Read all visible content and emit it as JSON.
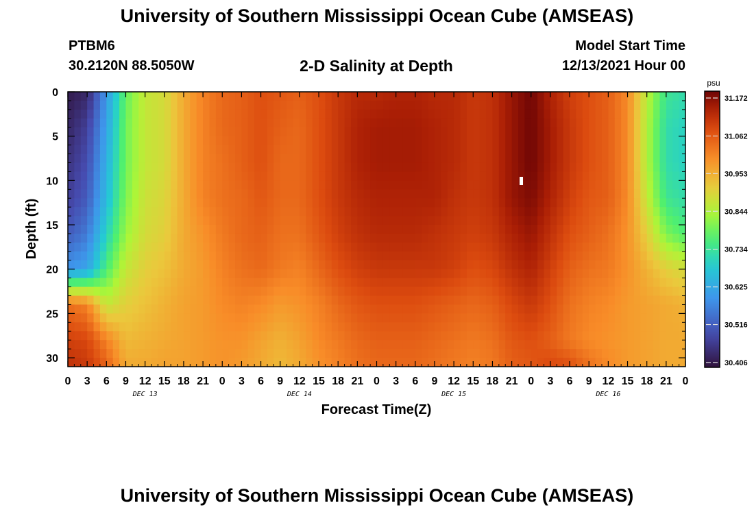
{
  "page": {
    "title": "University of Southern Mississippi Ocean Cube (AMSEAS)",
    "title_repeat": "University of Southern Mississippi Ocean Cube (AMSEAS)",
    "station_id": "PTBM6",
    "station_coords": "30.2120N  88.5050W",
    "subtitle": "2-D Salinity at Depth",
    "model_start_label": "Model Start Time",
    "model_start_value": "12/13/2021 Hour 00"
  },
  "chart_data": {
    "type": "heatmap",
    "title": "2-D Salinity at Depth",
    "xlabel": "Forecast Time(Z)",
    "ylabel": "Depth (ft)",
    "x_unit": "hours since model start",
    "xlim": [
      0,
      96
    ],
    "ylim": [
      31,
      0
    ],
    "x_ticks": [
      0,
      3,
      6,
      9,
      12,
      15,
      18,
      21,
      24,
      27,
      30,
      33,
      36,
      39,
      42,
      45,
      48,
      51,
      54,
      57,
      60,
      63,
      66,
      69,
      72,
      75,
      78,
      81,
      84,
      87,
      90,
      93,
      96
    ],
    "x_tick_labels": [
      "0",
      "3",
      "6",
      "9",
      "12",
      "15",
      "18",
      "21",
      "0",
      "3",
      "6",
      "9",
      "12",
      "15",
      "18",
      "21",
      "0",
      "3",
      "6",
      "9",
      "12",
      "15",
      "18",
      "21",
      "0",
      "3",
      "6",
      "9",
      "12",
      "15",
      "18",
      "21",
      "0"
    ],
    "day_labels": [
      {
        "x": 12,
        "label": "DEC 13"
      },
      {
        "x": 36,
        "label": "DEC 14"
      },
      {
        "x": 60,
        "label": "DEC 15"
      },
      {
        "x": 84,
        "label": "DEC 16"
      }
    ],
    "y_ticks": [
      0,
      5,
      10,
      15,
      20,
      25,
      30
    ],
    "y_tick_labels": [
      "0",
      "5",
      "10",
      "15",
      "20",
      "25",
      "30"
    ],
    "colorbar": {
      "unit": "psu",
      "min": 30.406,
      "max": 31.172,
      "ticks": [
        31.172,
        31.062,
        30.953,
        30.844,
        30.734,
        30.625,
        30.516,
        30.406
      ],
      "tick_labels": [
        "31.172",
        "31.062",
        "30.953",
        "30.844",
        "30.734",
        "30.625",
        "30.516",
        "30.406"
      ]
    },
    "grid": false,
    "depths": [
      0,
      4,
      8,
      12,
      16,
      20,
      24,
      28,
      31
    ],
    "times": [
      0,
      3,
      6,
      9,
      12,
      15,
      18,
      21,
      24,
      27,
      30,
      33,
      36,
      39,
      42,
      45,
      48,
      51,
      54,
      57,
      60,
      63,
      66,
      69,
      72,
      75,
      78,
      81,
      84,
      87,
      90,
      93,
      96
    ],
    "salinity": [
      [
        30.42,
        30.44,
        30.6,
        30.78,
        30.86,
        30.88,
        30.95,
        31.0,
        31.03,
        31.04,
        31.06,
        31.05,
        31.04,
        31.06,
        31.09,
        31.11,
        31.11,
        31.12,
        31.12,
        31.11,
        31.11,
        31.09,
        31.1,
        31.14,
        31.17,
        31.12,
        31.08,
        31.06,
        31.04,
        30.99,
        30.85,
        30.74,
        30.72
      ],
      [
        30.44,
        30.48,
        30.62,
        30.79,
        30.86,
        30.88,
        30.95,
        31.0,
        31.03,
        31.04,
        31.06,
        31.04,
        31.03,
        31.06,
        31.09,
        31.12,
        31.13,
        31.13,
        31.13,
        31.12,
        31.11,
        31.09,
        31.1,
        31.14,
        31.17,
        31.13,
        31.09,
        31.06,
        31.04,
        30.99,
        30.84,
        30.72,
        30.7
      ],
      [
        30.46,
        30.5,
        30.64,
        30.79,
        30.86,
        30.88,
        30.95,
        31.0,
        31.02,
        31.04,
        31.06,
        31.03,
        31.03,
        31.06,
        31.09,
        31.12,
        31.13,
        31.13,
        31.13,
        31.12,
        31.11,
        31.09,
        31.1,
        31.14,
        31.17,
        31.13,
        31.09,
        31.06,
        31.04,
        30.99,
        30.84,
        30.72,
        30.7
      ],
      [
        30.48,
        30.52,
        30.66,
        30.8,
        30.87,
        30.89,
        30.95,
        31.0,
        31.02,
        31.03,
        31.05,
        31.03,
        31.03,
        31.06,
        31.09,
        31.11,
        31.12,
        31.12,
        31.12,
        31.12,
        31.1,
        31.09,
        31.1,
        31.14,
        31.16,
        31.12,
        31.08,
        31.05,
        31.04,
        30.99,
        30.86,
        30.74,
        30.72
      ],
      [
        30.52,
        30.56,
        30.7,
        30.82,
        30.88,
        30.9,
        30.95,
        30.98,
        31.01,
        31.03,
        31.04,
        31.02,
        31.02,
        31.05,
        31.08,
        31.1,
        31.11,
        31.11,
        31.11,
        31.1,
        31.09,
        31.08,
        31.09,
        31.12,
        31.14,
        31.1,
        31.06,
        31.04,
        31.02,
        30.98,
        30.9,
        30.8,
        30.76
      ],
      [
        30.6,
        30.62,
        30.76,
        30.86,
        30.9,
        30.92,
        30.95,
        30.97,
        31.0,
        31.02,
        31.03,
        31.01,
        31.0,
        31.03,
        31.06,
        31.08,
        31.09,
        31.09,
        31.09,
        31.09,
        31.08,
        31.06,
        31.07,
        31.1,
        31.12,
        31.08,
        31.04,
        31.02,
        31.01,
        30.98,
        30.94,
        30.9,
        30.88
      ],
      [
        31.02,
        31.0,
        30.86,
        30.9,
        30.92,
        30.94,
        30.96,
        30.97,
        30.99,
        31.0,
        30.99,
        30.97,
        30.98,
        31.0,
        31.03,
        31.05,
        31.06,
        31.06,
        31.06,
        31.05,
        31.04,
        31.03,
        31.04,
        31.07,
        31.09,
        31.06,
        31.02,
        31.0,
        30.99,
        30.97,
        30.96,
        30.95,
        30.94
      ],
      [
        31.08,
        31.07,
        31.0,
        30.93,
        30.94,
        30.95,
        30.96,
        30.97,
        30.98,
        30.98,
        30.96,
        30.94,
        30.96,
        30.99,
        31.01,
        31.03,
        31.04,
        31.04,
        31.04,
        31.03,
        31.02,
        31.01,
        31.02,
        31.05,
        31.06,
        31.04,
        31.01,
        30.99,
        30.98,
        30.97,
        30.96,
        30.95,
        30.95
      ],
      [
        31.1,
        31.09,
        31.04,
        30.95,
        30.95,
        30.96,
        30.96,
        30.97,
        30.98,
        30.97,
        30.95,
        30.93,
        30.95,
        30.98,
        31.0,
        31.02,
        31.03,
        31.03,
        31.03,
        31.02,
        31.01,
        31.0,
        31.01,
        31.04,
        31.05,
        31.07,
        31.06,
        31.02,
        30.99,
        30.97,
        30.96,
        30.95,
        30.95
      ]
    ]
  }
}
